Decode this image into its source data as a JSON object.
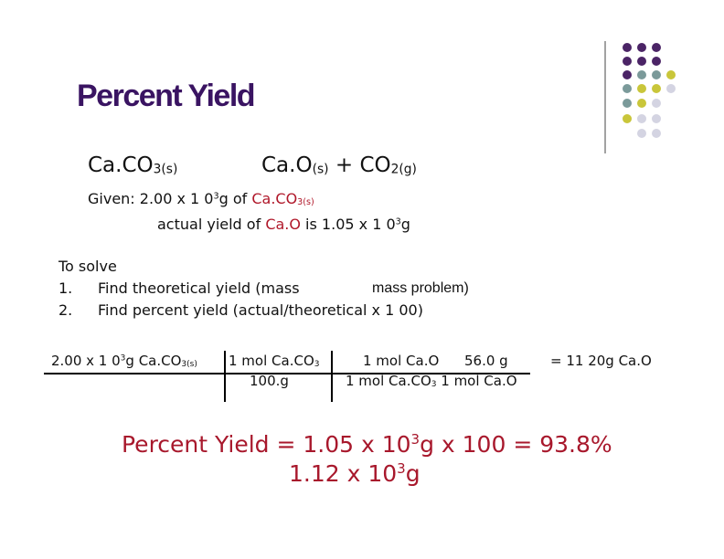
{
  "title": "Percent Yield",
  "equation": {
    "reactant": "Ca.CO",
    "reactant_sub": "3(s)",
    "product1": "Ca.O",
    "product1_sub": "(s)",
    "plus": "+ CO",
    "product2_sub": "2(g)"
  },
  "given": {
    "line1": {
      "text": "Given: 2.00 x 1 0",
      "exp": "3",
      "unit": "g of ",
      "compound": "Ca.CO",
      "compound_sub": "3(s)"
    },
    "line2": {
      "text": "actual yield of ",
      "compound": "Ca.O",
      "rest": " is 1.05 x 1 0",
      "exp": "3",
      "unit": "g"
    }
  },
  "solve": {
    "heading": "To solve",
    "steps": [
      {
        "number": "1.",
        "text": "Find theoretical yield (mass",
        "text_end": "mass problem)"
      },
      {
        "number": "2.",
        "text": "Find percent yield (actual/theoretical x 1 00)"
      }
    ]
  },
  "calculation": {
    "start": {
      "text": "2.00 x 1 0",
      "exp": "3",
      "unit": "g Ca.CO",
      "sub": "3(s)"
    },
    "factor1": {
      "numerator": "1 mol Ca.CO",
      "numerator_sub": "3",
      "denominator": "100.g"
    },
    "factor2": {
      "numerator_mol": "1 mol Ca.O",
      "numerator_mass": "56.0 g",
      "denominator": "1 mol Ca.CO",
      "denominator_sub": "3",
      "denominator_end": " 1 mol Ca.O"
    },
    "result": "= 11 20g Ca.O"
  },
  "percent_yield": {
    "line1": {
      "text": "Percent Yield = 1.05 x 10",
      "exp": "3",
      "rest": "g x 100 = 93.8%"
    },
    "line2": {
      "text": "1.12 x 10",
      "exp": "3",
      "rest": "g"
    }
  }
}
